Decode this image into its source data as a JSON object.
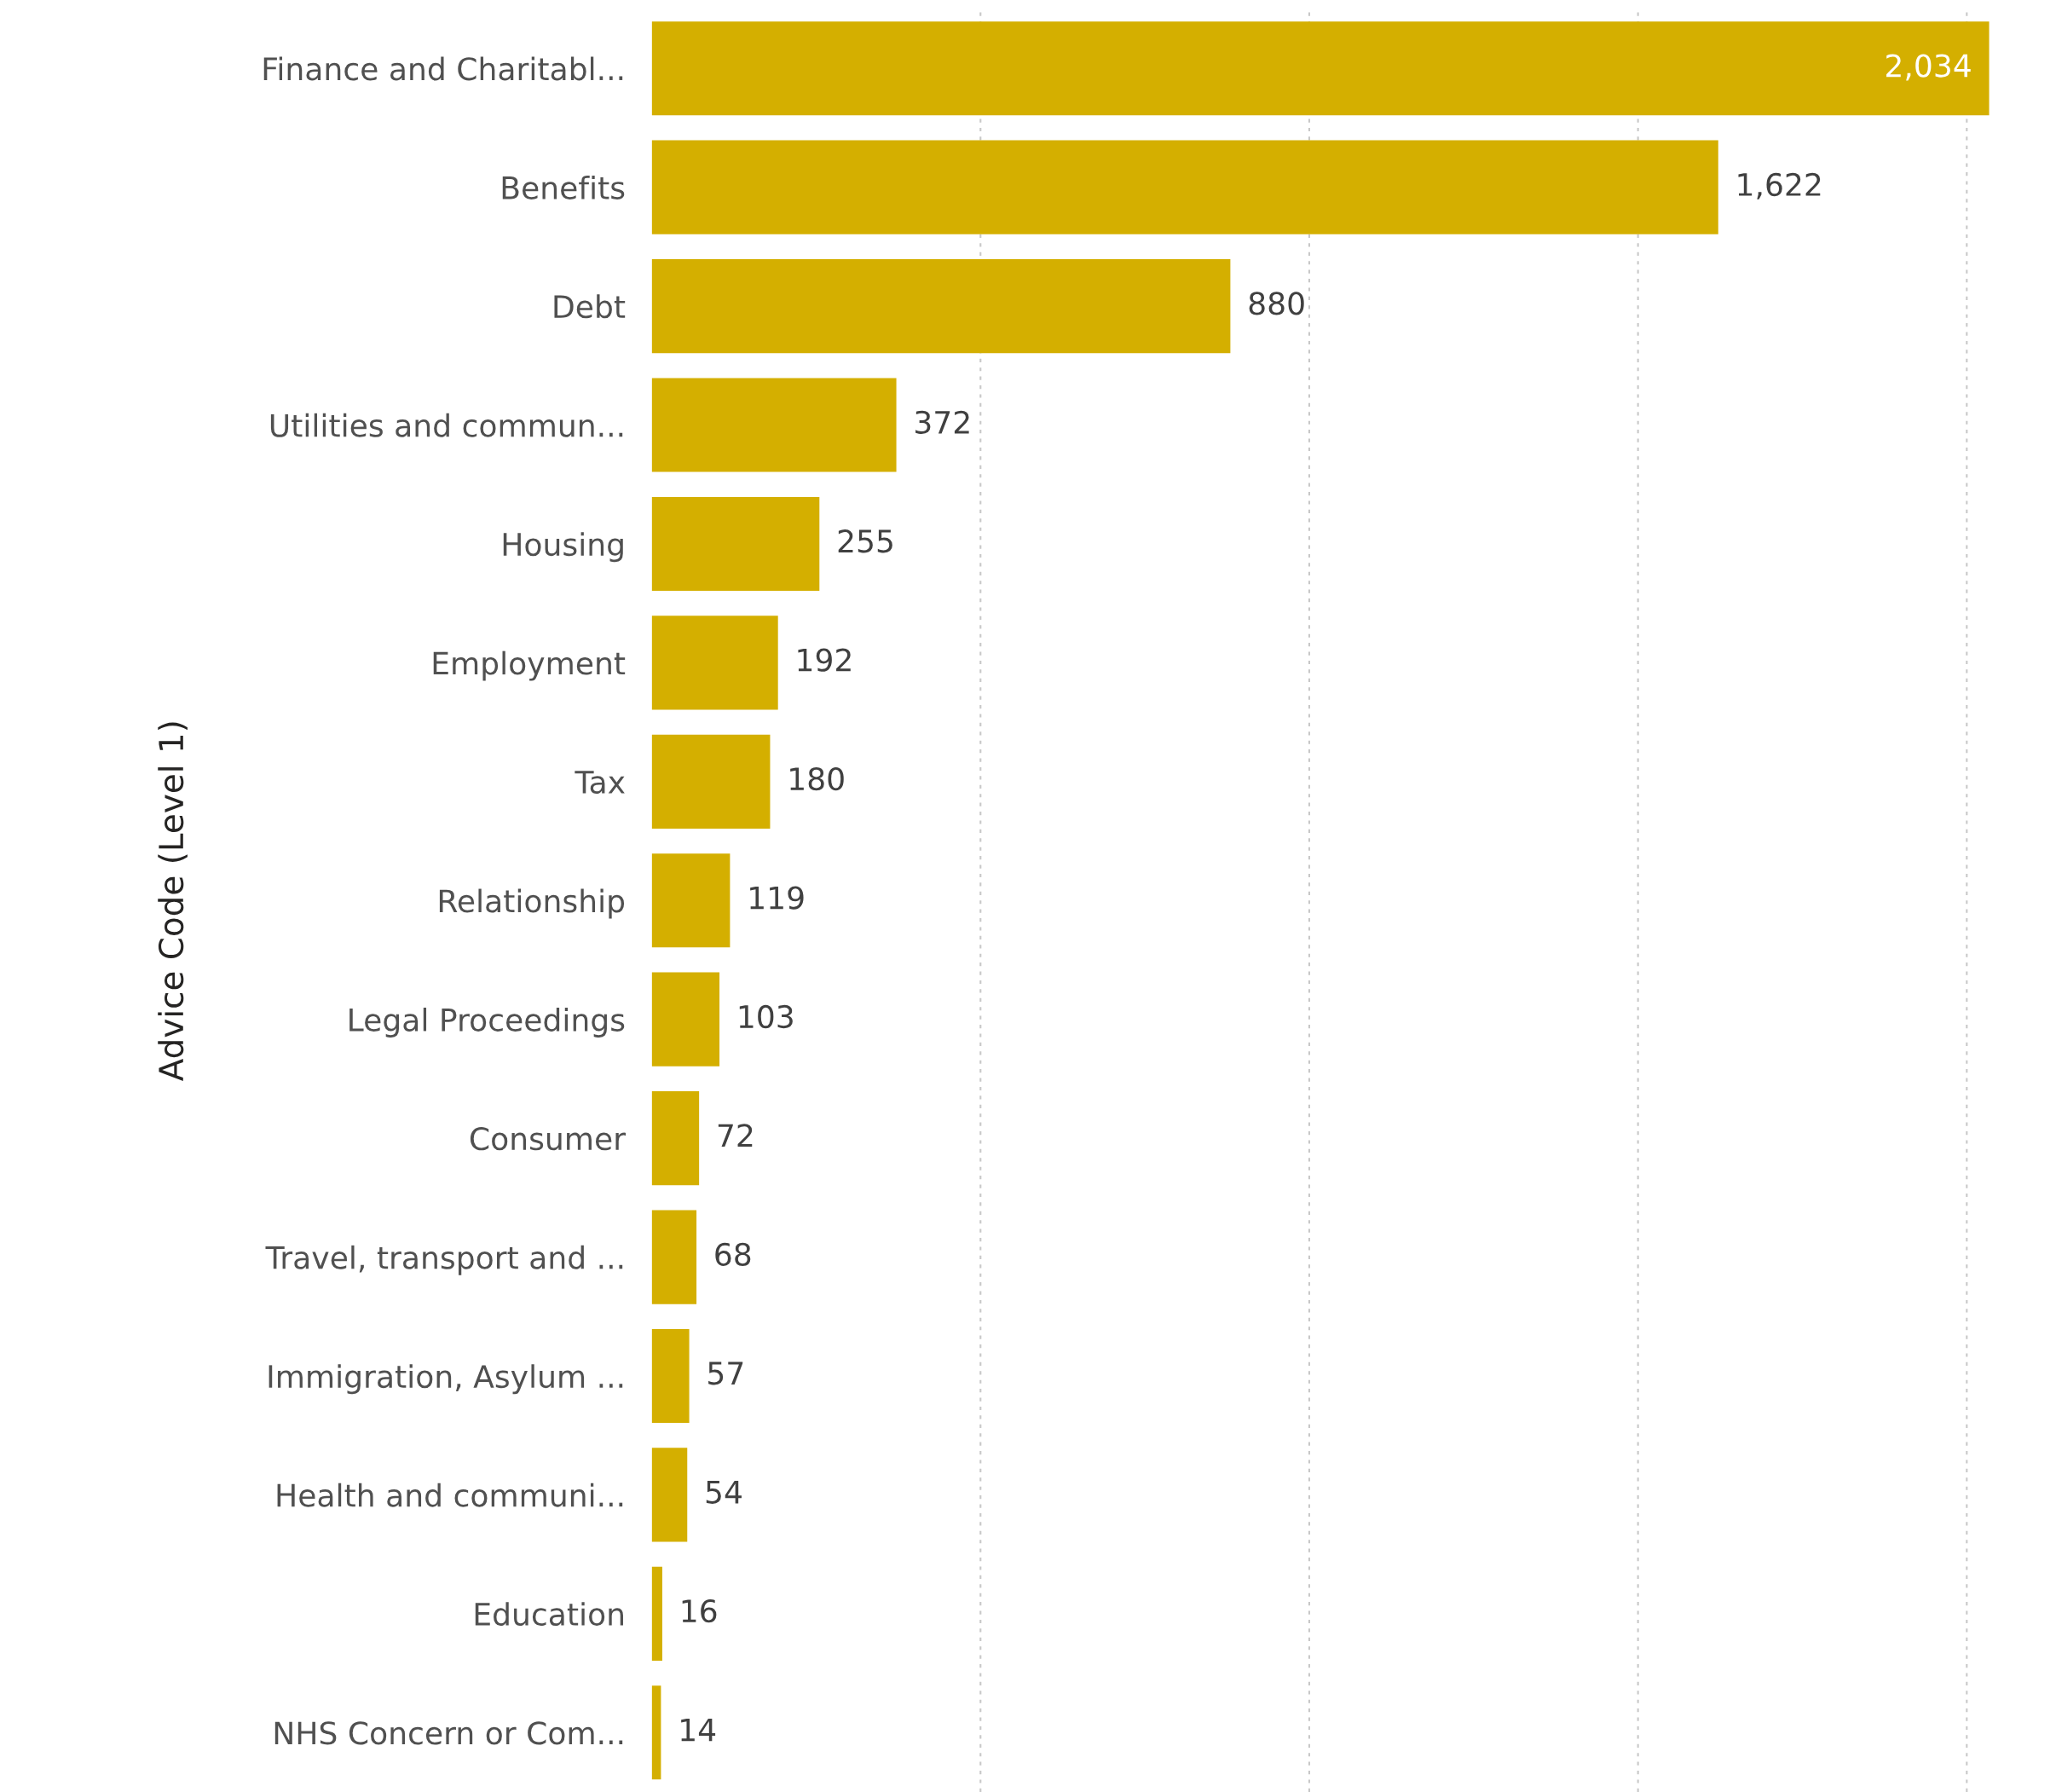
{
  "chart_data": {
    "type": "bar",
    "orientation": "horizontal",
    "ylabel": "Advice Code (Level 1)",
    "categories": [
      "Finance and Charitabl...",
      "Benefits",
      "Debt",
      "Utilities and commun...",
      "Housing",
      "Employment",
      "Tax",
      "Relationship",
      "Legal Proceedings",
      "Consumer",
      "Travel, transport and ...",
      "Immigration, Asylum ...",
      "Health and communi...",
      "Education",
      "NHS Concern or Com..."
    ],
    "values": [
      2034,
      1622,
      880,
      372,
      255,
      192,
      180,
      119,
      103,
      72,
      68,
      57,
      54,
      16,
      14
    ],
    "value_labels": [
      "2,034",
      "1,622",
      "880",
      "372",
      "255",
      "192",
      "180",
      "119",
      "103",
      "72",
      "68",
      "57",
      "54",
      "16",
      "14"
    ],
    "color": "#d4af00",
    "xticks": [
      {
        "value": 500,
        "label": null
      },
      {
        "value": 1000,
        "label": null
      },
      {
        "value": 1500,
        "label": null
      },
      {
        "value": 2000,
        "label": null
      }
    ],
    "grid": "x",
    "tick_labels": "y"
  }
}
